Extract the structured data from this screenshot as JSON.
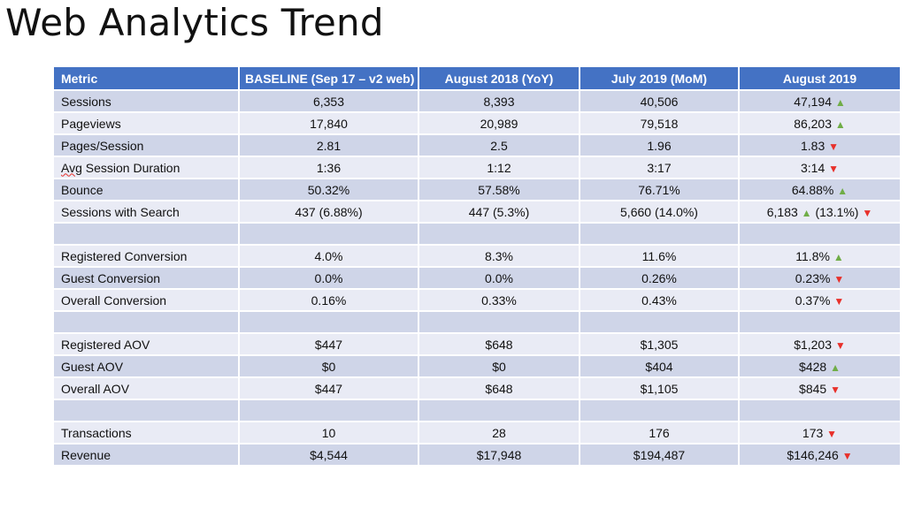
{
  "title": "Web Analytics Trend",
  "colors": {
    "header_bg": "#4472c4",
    "row_odd": "#cfd5e8",
    "row_even": "#e9ebf5",
    "up_arrow": "#70ad47",
    "down_arrow": "#e8302a"
  },
  "headers": [
    "Metric",
    "BASELINE (Sep 17 – v2 web)",
    "August 2018 (YoY)",
    "July 2019 (MoM)",
    "August 2019"
  ],
  "rows": [
    {
      "metric": "Sessions",
      "baseline": "6,353",
      "yoy": "8,393",
      "mom": "40,506",
      "current": "47,194",
      "trend": "up"
    },
    {
      "metric": "Pageviews",
      "baseline": "17,840",
      "yoy": "20,989",
      "mom": "79,518",
      "current": "86,203",
      "trend": "up"
    },
    {
      "metric": "Pages/Session",
      "baseline": "2.81",
      "yoy": "2.5",
      "mom": "1.96",
      "current": "1.83",
      "trend": "down"
    },
    {
      "metric_a": "Avg",
      "metric_b": " Session Duration",
      "baseline": "1:36",
      "yoy": "1:12",
      "mom": "3:17",
      "current": "3:14",
      "trend": "down"
    },
    {
      "metric": "Bounce",
      "baseline": "50.32%",
      "yoy": "57.58%",
      "mom": "76.71%",
      "current": "64.88%",
      "trend": "up"
    },
    {
      "metric": "Sessions with Search",
      "baseline": "437 (6.88%)",
      "yoy": "447 (5.3%)",
      "mom": "5,660 (14.0%)",
      "current_a": "6,183",
      "trend_a": "up",
      "current_b": "(13.1%)",
      "trend_b": "down"
    },
    {
      "metric": "Registered Conversion",
      "baseline": "4.0%",
      "yoy": "8.3%",
      "mom": "11.6%",
      "current": "11.8%",
      "trend": "up"
    },
    {
      "metric": "Guest Conversion",
      "baseline": "0.0%",
      "yoy": "0.0%",
      "mom": "0.26%",
      "current": "0.23%",
      "trend": "down"
    },
    {
      "metric": "Overall Conversion",
      "baseline": "0.16%",
      "yoy": "0.33%",
      "mom": "0.43%",
      "current": "0.37%",
      "trend": "down"
    },
    {
      "metric": "Registered AOV",
      "baseline": "$447",
      "yoy": "$648",
      "mom": "$1,305",
      "current": "$1,203",
      "trend": "down"
    },
    {
      "metric": "Guest AOV",
      "baseline": "$0",
      "yoy": "$0",
      "mom": "$404",
      "current": "$428",
      "trend": "up"
    },
    {
      "metric": "Overall AOV",
      "baseline": "$447",
      "yoy": "$648",
      "mom": "$1,105",
      "current": "$845",
      "trend": "down"
    },
    {
      "metric": "Transactions",
      "baseline": "10",
      "yoy": "28",
      "mom": "176",
      "current": "173",
      "trend": "down"
    },
    {
      "metric": "Revenue",
      "baseline": "$4,544",
      "yoy": "$17,948",
      "mom": "$194,487",
      "current": "$146,246",
      "trend": "down"
    }
  ],
  "glyphs": {
    "up": "▲",
    "down": "▼"
  }
}
